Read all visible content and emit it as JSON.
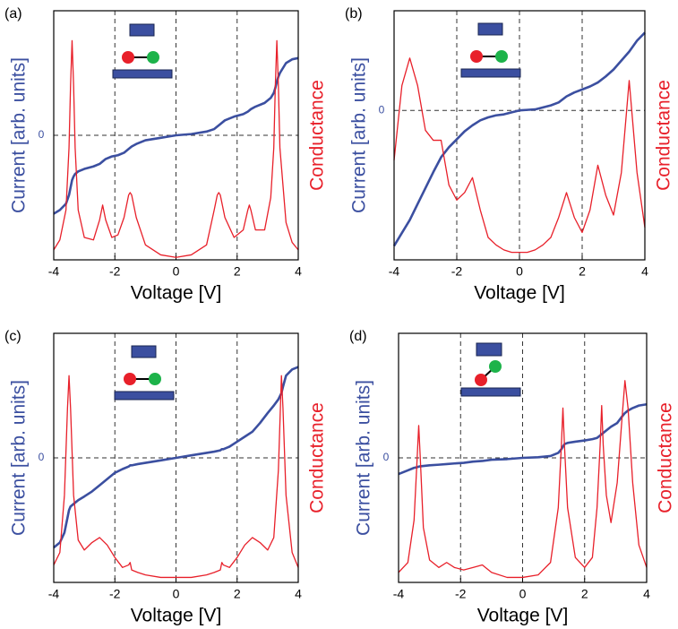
{
  "chart_data": [
    {
      "type": "line",
      "panel_label": "(a)",
      "xlabel": "Voltage [V]",
      "ylabel": "Current [arb. units]",
      "y2label": "Conductance",
      "xlim": [
        -4,
        4
      ],
      "xticks": [
        -4,
        -2,
        0,
        2,
        4
      ],
      "ylim": [
        -1,
        1
      ],
      "yticks": [
        0
      ],
      "y2lim": [
        0,
        1
      ],
      "grid": true,
      "x": [
        -4,
        -3.8,
        -3.6,
        -3.5,
        -3.45,
        -3.4,
        -3.35,
        -3.3,
        -3.2,
        -3,
        -2.7,
        -2.5,
        -2.4,
        -2.3,
        -2.1,
        -1.9,
        -1.7,
        -1.55,
        -1.5,
        -1.45,
        -1.3,
        -1,
        -0.5,
        0,
        0.5,
        1,
        1.25,
        1.35,
        1.4,
        1.45,
        1.6,
        1.9,
        2.2,
        2.35,
        2.4,
        2.45,
        2.6,
        2.9,
        3.1,
        3.2,
        3.25,
        3.3,
        3.35,
        3.4,
        3.6,
        3.8,
        4
      ],
      "series": [
        {
          "color": "#3b4fa0",
          "axis": "y",
          "values": [
            -0.63,
            -0.6,
            -0.55,
            -0.48,
            -0.42,
            -0.36,
            -0.33,
            -0.31,
            -0.29,
            -0.27,
            -0.25,
            -0.23,
            -0.21,
            -0.19,
            -0.17,
            -0.16,
            -0.14,
            -0.11,
            -0.1,
            -0.09,
            -0.07,
            -0.04,
            -0.02,
            0,
            0.01,
            0.03,
            0.05,
            0.07,
            0.08,
            0.09,
            0.12,
            0.15,
            0.17,
            0.19,
            0.2,
            0.21,
            0.23,
            0.26,
            0.3,
            0.34,
            0.38,
            0.43,
            0.47,
            0.5,
            0.58,
            0.61,
            0.62
          ]
        },
        {
          "color": "#e8202a",
          "axis": "y2",
          "values": [
            0.04,
            0.08,
            0.2,
            0.45,
            0.7,
            0.88,
            0.7,
            0.45,
            0.2,
            0.09,
            0.08,
            0.16,
            0.22,
            0.16,
            0.09,
            0.1,
            0.17,
            0.26,
            0.27,
            0.26,
            0.17,
            0.06,
            0.02,
            0.01,
            0.02,
            0.06,
            0.2,
            0.26,
            0.27,
            0.26,
            0.17,
            0.09,
            0.12,
            0.2,
            0.22,
            0.2,
            0.12,
            0.12,
            0.25,
            0.45,
            0.7,
            0.88,
            0.7,
            0.45,
            0.15,
            0.07,
            0.04
          ]
        }
      ]
    },
    {
      "type": "line",
      "panel_label": "(b)",
      "xlabel": "Voltage [V]",
      "ylabel": "Current [arb. units]",
      "y2label": "Conductance",
      "xlim": [
        -4,
        4
      ],
      "xticks": [
        -4,
        -2,
        0,
        2,
        4
      ],
      "ylim": [
        -1.5,
        1
      ],
      "yticks": [
        0
      ],
      "y2lim": [
        0,
        1
      ],
      "grid": true,
      "x": [
        -4,
        -3.75,
        -3.5,
        -3.25,
        -3,
        -2.75,
        -2.5,
        -2.25,
        -2,
        -1.75,
        -1.5,
        -1.25,
        -1,
        -0.75,
        -0.5,
        -0.25,
        0,
        0.25,
        0.5,
        0.75,
        1,
        1.25,
        1.5,
        1.75,
        2,
        2.25,
        2.5,
        2.75,
        3,
        3.25,
        3.5,
        3.75,
        4
      ],
      "series": [
        {
          "color": "#3b4fa0",
          "axis": "y",
          "values": [
            -1.36,
            -1.23,
            -1.1,
            -0.94,
            -0.78,
            -0.62,
            -0.47,
            -0.37,
            -0.29,
            -0.21,
            -0.15,
            -0.1,
            -0.07,
            -0.05,
            -0.04,
            -0.02,
            0,
            0.005,
            0.01,
            0.03,
            0.05,
            0.08,
            0.14,
            0.18,
            0.21,
            0.24,
            0.28,
            0.34,
            0.41,
            0.5,
            0.59,
            0.7,
            0.78
          ]
        },
        {
          "color": "#e8202a",
          "axis": "y2",
          "values": [
            0.4,
            0.7,
            0.81,
            0.7,
            0.52,
            0.48,
            0.48,
            0.3,
            0.24,
            0.27,
            0.33,
            0.2,
            0.09,
            0.06,
            0.04,
            0.03,
            0.03,
            0.03,
            0.04,
            0.06,
            0.09,
            0.17,
            0.27,
            0.17,
            0.11,
            0.2,
            0.38,
            0.26,
            0.18,
            0.35,
            0.72,
            0.35,
            0.13
          ]
        }
      ]
    },
    {
      "type": "line",
      "panel_label": "(c)",
      "xlabel": "Voltage [V]",
      "ylabel": "Current [arb. units]",
      "y2label": "Conductance",
      "xlim": [
        -4,
        4
      ],
      "xticks": [
        -4,
        -2,
        0,
        2,
        4
      ],
      "ylim": [
        -1,
        1
      ],
      "yticks": [
        0
      ],
      "y2lim": [
        0,
        1
      ],
      "grid": true,
      "x": [
        -4,
        -3.8,
        -3.65,
        -3.55,
        -3.5,
        -3.45,
        -3.35,
        -3.2,
        -3,
        -2.75,
        -2.5,
        -2.25,
        -2,
        -1.75,
        -1.55,
        -1.5,
        -1.45,
        -1.25,
        -1,
        -0.5,
        0,
        0.5,
        1,
        1.25,
        1.45,
        1.5,
        1.55,
        1.75,
        2,
        2.25,
        2.5,
        2.75,
        3,
        3.2,
        3.35,
        3.45,
        3.5,
        3.6,
        3.8,
        4
      ],
      "series": [
        {
          "color": "#3b4fa0",
          "axis": "y",
          "values": [
            -0.72,
            -0.68,
            -0.6,
            -0.48,
            -0.42,
            -0.39,
            -0.37,
            -0.34,
            -0.31,
            -0.27,
            -0.22,
            -0.17,
            -0.12,
            -0.09,
            -0.07,
            -0.06,
            -0.06,
            -0.05,
            -0.04,
            -0.02,
            0,
            0.02,
            0.04,
            0.05,
            0.06,
            0.07,
            0.07,
            0.09,
            0.13,
            0.17,
            0.21,
            0.28,
            0.36,
            0.42,
            0.47,
            0.52,
            0.57,
            0.66,
            0.71,
            0.73
          ]
        },
        {
          "color": "#e8202a",
          "axis": "y2",
          "values": [
            0.07,
            0.12,
            0.35,
            0.7,
            0.83,
            0.7,
            0.35,
            0.17,
            0.13,
            0.16,
            0.18,
            0.15,
            0.1,
            0.06,
            0.07,
            0.08,
            0.05,
            0.04,
            0.03,
            0.02,
            0.02,
            0.02,
            0.03,
            0.04,
            0.05,
            0.08,
            0.07,
            0.06,
            0.1,
            0.15,
            0.18,
            0.16,
            0.13,
            0.18,
            0.45,
            0.83,
            0.7,
            0.35,
            0.12,
            0.06
          ]
        }
      ]
    },
    {
      "type": "line",
      "panel_label": "(d)",
      "xlabel": "Voltage [V]",
      "ylabel": "Current [arb. units]",
      "y2label": "Conductance",
      "xlim": [
        -4,
        4
      ],
      "xticks": [
        -4,
        -2,
        0,
        2,
        4
      ],
      "ylim": [
        -1,
        1
      ],
      "yticks": [
        0
      ],
      "y2lim": [
        0,
        1
      ],
      "grid": true,
      "x": [
        -4,
        -3.7,
        -3.5,
        -3.4,
        -3.35,
        -3.3,
        -3.2,
        -3,
        -2.7,
        -2.45,
        -2.2,
        -1.9,
        -1.6,
        -1.3,
        -1,
        -0.5,
        0,
        0.5,
        0.9,
        1.15,
        1.25,
        1.3,
        1.35,
        1.45,
        1.7,
        2,
        2.25,
        2.4,
        2.5,
        2.55,
        2.6,
        2.7,
        2.85,
        3.05,
        3.2,
        3.3,
        3.4,
        3.55,
        3.75,
        4
      ],
      "series": [
        {
          "color": "#3b4fa0",
          "axis": "y",
          "values": [
            -0.13,
            -0.1,
            -0.08,
            -0.075,
            -0.07,
            -0.068,
            -0.065,
            -0.06,
            -0.055,
            -0.05,
            -0.045,
            -0.04,
            -0.03,
            -0.025,
            -0.015,
            -0.01,
            0,
            0.005,
            0.015,
            0.04,
            0.07,
            0.09,
            0.11,
            0.12,
            0.13,
            0.14,
            0.15,
            0.16,
            0.18,
            0.19,
            0.2,
            0.22,
            0.25,
            0.28,
            0.33,
            0.36,
            0.38,
            0.4,
            0.42,
            0.43
          ]
        },
        {
          "color": "#e8202a",
          "axis": "y2",
          "values": [
            0.04,
            0.08,
            0.25,
            0.5,
            0.63,
            0.5,
            0.22,
            0.09,
            0.06,
            0.08,
            0.06,
            0.05,
            0.06,
            0.07,
            0.04,
            0.02,
            0.02,
            0.03,
            0.08,
            0.3,
            0.55,
            0.7,
            0.55,
            0.3,
            0.1,
            0.06,
            0.1,
            0.3,
            0.55,
            0.71,
            0.55,
            0.35,
            0.24,
            0.4,
            0.65,
            0.81,
            0.7,
            0.4,
            0.15,
            0.06
          ]
        }
      ]
    }
  ]
}
